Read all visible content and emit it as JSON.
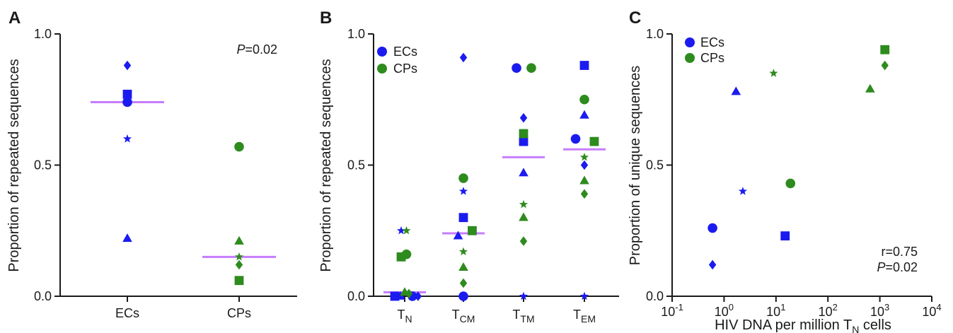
{
  "colors": {
    "ECs": "#1b1bf0",
    "CPs": "#2e8b1e",
    "median": "#c77dff",
    "axis": "#1a1a1a"
  },
  "chart_data": [
    {
      "panel": "A",
      "type": "scatter",
      "ylabel": "Proportion of repeated sequences",
      "ylim": [
        0,
        1
      ],
      "yticks": [
        "0.0",
        "0.5",
        "1.0"
      ],
      "categories": [
        "ECs",
        "CPs"
      ],
      "annotation": {
        "italic": "P",
        "text": "=0.02"
      },
      "series": [
        {
          "group": "ECs",
          "points": [
            {
              "category": "ECs",
              "y": 0.88,
              "marker": "diamond"
            },
            {
              "category": "ECs",
              "y": 0.77,
              "marker": "square"
            },
            {
              "category": "ECs",
              "y": 0.74,
              "marker": "circle"
            },
            {
              "category": "ECs",
              "y": 0.6,
              "marker": "star"
            },
            {
              "category": "ECs",
              "y": 0.22,
              "marker": "triangle"
            }
          ],
          "median": 0.74
        },
        {
          "group": "CPs",
          "points": [
            {
              "category": "CPs",
              "y": 0.57,
              "marker": "circle"
            },
            {
              "category": "CPs",
              "y": 0.21,
              "marker": "triangle"
            },
            {
              "category": "CPs",
              "y": 0.15,
              "marker": "star"
            },
            {
              "category": "CPs",
              "y": 0.12,
              "marker": "diamond"
            },
            {
              "category": "CPs",
              "y": 0.06,
              "marker": "square"
            }
          ],
          "median": 0.15
        }
      ]
    },
    {
      "panel": "B",
      "type": "scatter",
      "ylabel": "Proportion of repeated sequences",
      "ylim": [
        0,
        1
      ],
      "yticks": [
        "0.0",
        "0.5",
        "1.0"
      ],
      "categories": [
        {
          "main": "T",
          "sub": "N"
        },
        {
          "main": "T",
          "sub": "CM"
        },
        {
          "main": "T",
          "sub": "TM"
        },
        {
          "main": "T",
          "sub": "EM"
        }
      ],
      "legend": [
        "ECs",
        "CPs"
      ],
      "medians": [
        0.015,
        0.24,
        0.53,
        0.56
      ],
      "points": [
        {
          "cat": 0,
          "dx": -0.28,
          "y": 0.0,
          "group": "ECs",
          "marker": "square"
        },
        {
          "cat": 0,
          "dx": -0.12,
          "y": 0.0,
          "group": "ECs",
          "marker": "triangle"
        },
        {
          "cat": 0,
          "dx": 0.22,
          "y": 0.0,
          "group": "ECs",
          "marker": "circle"
        },
        {
          "cat": 0,
          "dx": 0.38,
          "y": 0.0,
          "group": "ECs",
          "marker": "diamond"
        },
        {
          "cat": 0,
          "dx": -0.1,
          "y": 0.25,
          "group": "ECs",
          "marker": "star"
        },
        {
          "cat": 0,
          "dx": 0.05,
          "y": 0.25,
          "group": "CPs",
          "marker": "star"
        },
        {
          "cat": 0,
          "dx": -0.1,
          "y": 0.15,
          "group": "CPs",
          "marker": "square"
        },
        {
          "cat": 0,
          "dx": 0.05,
          "y": 0.16,
          "group": "CPs",
          "marker": "circle"
        },
        {
          "cat": 0,
          "dx": 0.0,
          "y": 0.015,
          "group": "CPs",
          "marker": "triangle"
        },
        {
          "cat": 0,
          "dx": 0.12,
          "y": 0.01,
          "group": "CPs",
          "marker": "diamond"
        },
        {
          "cat": 1,
          "dx": 0.0,
          "y": 0.91,
          "group": "ECs",
          "marker": "diamond"
        },
        {
          "cat": 1,
          "dx": 0.0,
          "y": 0.4,
          "group": "ECs",
          "marker": "star"
        },
        {
          "cat": 1,
          "dx": 0.0,
          "y": 0.3,
          "group": "ECs",
          "marker": "square"
        },
        {
          "cat": 1,
          "dx": -0.15,
          "y": 0.23,
          "group": "ECs",
          "marker": "triangle"
        },
        {
          "cat": 1,
          "dx": 0.0,
          "y": 0.0,
          "group": "ECs",
          "marker": "circle"
        },
        {
          "cat": 1,
          "dx": 0.0,
          "y": 0.45,
          "group": "CPs",
          "marker": "circle"
        },
        {
          "cat": 1,
          "dx": 0.25,
          "y": 0.25,
          "group": "CPs",
          "marker": "square"
        },
        {
          "cat": 1,
          "dx": 0.0,
          "y": 0.17,
          "group": "CPs",
          "marker": "star"
        },
        {
          "cat": 1,
          "dx": 0.0,
          "y": 0.11,
          "group": "CPs",
          "marker": "triangle"
        },
        {
          "cat": 1,
          "dx": 0.0,
          "y": 0.05,
          "group": "CPs",
          "marker": "diamond"
        },
        {
          "cat": 2,
          "dx": -0.2,
          "y": 0.87,
          "group": "ECs",
          "marker": "circle"
        },
        {
          "cat": 2,
          "dx": 0.0,
          "y": 0.68,
          "group": "ECs",
          "marker": "diamond"
        },
        {
          "cat": 2,
          "dx": 0.0,
          "y": 0.59,
          "group": "ECs",
          "marker": "square"
        },
        {
          "cat": 2,
          "dx": 0.0,
          "y": 0.47,
          "group": "ECs",
          "marker": "triangle"
        },
        {
          "cat": 2,
          "dx": 0.0,
          "y": 0.0,
          "group": "ECs",
          "marker": "star"
        },
        {
          "cat": 2,
          "dx": 0.22,
          "y": 0.87,
          "group": "CPs",
          "marker": "circle"
        },
        {
          "cat": 2,
          "dx": 0.0,
          "y": 0.62,
          "group": "CPs",
          "marker": "square"
        },
        {
          "cat": 2,
          "dx": 0.0,
          "y": 0.35,
          "group": "CPs",
          "marker": "star"
        },
        {
          "cat": 2,
          "dx": 0.0,
          "y": 0.3,
          "group": "CPs",
          "marker": "triangle"
        },
        {
          "cat": 2,
          "dx": 0.0,
          "y": 0.21,
          "group": "CPs",
          "marker": "diamond"
        },
        {
          "cat": 3,
          "dx": 0.0,
          "y": 0.88,
          "group": "ECs",
          "marker": "square"
        },
        {
          "cat": 3,
          "dx": 0.0,
          "y": 0.69,
          "group": "ECs",
          "marker": "triangle"
        },
        {
          "cat": 3,
          "dx": -0.25,
          "y": 0.6,
          "group": "ECs",
          "marker": "circle"
        },
        {
          "cat": 3,
          "dx": 0.0,
          "y": 0.5,
          "group": "ECs",
          "marker": "diamond"
        },
        {
          "cat": 3,
          "dx": 0.0,
          "y": 0.0,
          "group": "ECs",
          "marker": "star"
        },
        {
          "cat": 3,
          "dx": 0.0,
          "y": 0.75,
          "group": "CPs",
          "marker": "circle"
        },
        {
          "cat": 3,
          "dx": 0.28,
          "y": 0.59,
          "group": "CPs",
          "marker": "square"
        },
        {
          "cat": 3,
          "dx": 0.0,
          "y": 0.53,
          "group": "CPs",
          "marker": "star"
        },
        {
          "cat": 3,
          "dx": 0.0,
          "y": 0.44,
          "group": "CPs",
          "marker": "triangle"
        },
        {
          "cat": 3,
          "dx": 0.0,
          "y": 0.39,
          "group": "CPs",
          "marker": "diamond"
        }
      ]
    },
    {
      "panel": "C",
      "type": "scatter",
      "ylabel": "Proportion of unique sequences",
      "xlabel": {
        "main": "HIV DNA per million T",
        "sub": "N",
        "tail": " cells"
      },
      "xscale": "log",
      "xlim": [
        0.1,
        10000
      ],
      "ylim": [
        0,
        1
      ],
      "yticks": [
        "0.0",
        "0.5",
        "1.0"
      ],
      "xticks": [
        {
          "base": "10",
          "exp": "-1"
        },
        {
          "base": "10",
          "exp": "0"
        },
        {
          "base": "10",
          "exp": "1"
        },
        {
          "base": "10",
          "exp": "2"
        },
        {
          "base": "10",
          "exp": "3"
        },
        {
          "base": "10",
          "exp": "4"
        }
      ],
      "legend": [
        "ECs",
        "CPs"
      ],
      "annotation": {
        "line1": "r=0.75",
        "italic": "P",
        "text": "=0.02"
      },
      "points": [
        {
          "x": 0.6,
          "y": 0.26,
          "group": "ECs",
          "marker": "circle"
        },
        {
          "x": 0.6,
          "y": 0.12,
          "group": "ECs",
          "marker": "diamond"
        },
        {
          "x": 1.7,
          "y": 0.78,
          "group": "ECs",
          "marker": "triangle"
        },
        {
          "x": 2.3,
          "y": 0.4,
          "group": "ECs",
          "marker": "star"
        },
        {
          "x": 15,
          "y": 0.23,
          "group": "ECs",
          "marker": "square"
        },
        {
          "x": 9,
          "y": 0.85,
          "group": "CPs",
          "marker": "star"
        },
        {
          "x": 19,
          "y": 0.43,
          "group": "CPs",
          "marker": "circle"
        },
        {
          "x": 650,
          "y": 0.79,
          "group": "CPs",
          "marker": "triangle"
        },
        {
          "x": 1250,
          "y": 0.94,
          "group": "CPs",
          "marker": "square"
        },
        {
          "x": 1250,
          "y": 0.88,
          "group": "CPs",
          "marker": "diamond"
        }
      ]
    }
  ]
}
